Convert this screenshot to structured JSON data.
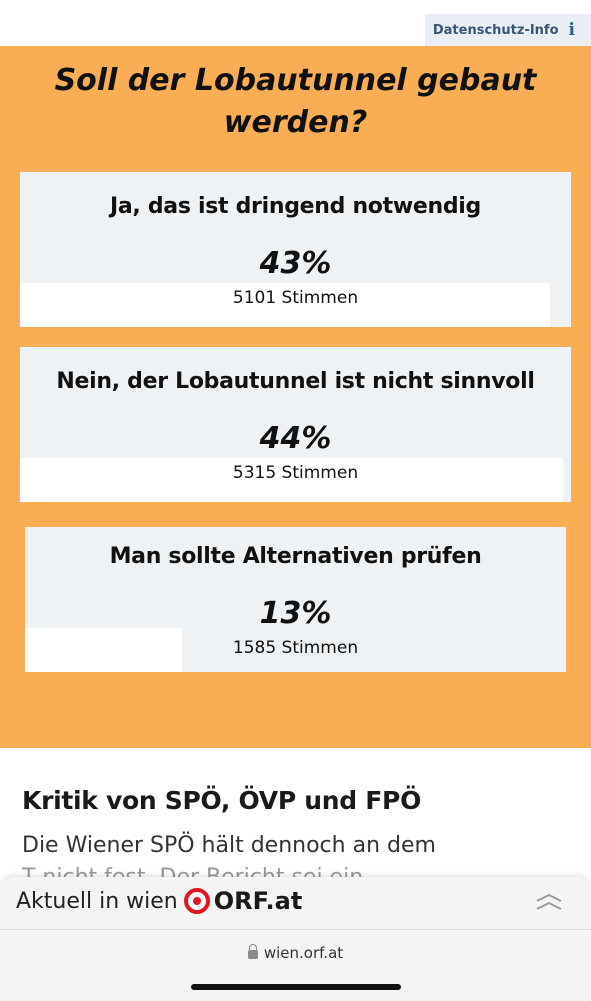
{
  "header": {
    "privacy_label": "Datenschutz-Info",
    "privacy_icon": "info-icon"
  },
  "poll": {
    "question": "Soll der Lobautunnel gebaut werden?",
    "accent_color": "#f9ae55",
    "options": [
      {
        "label": "Ja, das ist dringend notwendig",
        "percent": "43%",
        "votes": "5101 Stimmen",
        "fraction": 0.43,
        "selected": false
      },
      {
        "label": "Nein, der Lobautunnel ist nicht sinnvoll",
        "percent": "44%",
        "votes": "5315 Stimmen",
        "fraction": 0.44,
        "selected": false
      },
      {
        "label": "Man sollte Alternativen prüfen",
        "percent": "13%",
        "votes": "1585 Stimmen",
        "fraction": 0.13,
        "selected": true
      }
    ]
  },
  "article": {
    "heading": "Kritik von SPÖ, ÖVP und FPÖ",
    "paragraph_line1": "Die Wiener SPÖ hält dennoch an dem",
    "paragraph_line2": "T         nicht fest. Der Bericht sei ein"
  },
  "bottom_bar": {
    "prefix": "Aktuell in wien",
    "brand": "ORF.at",
    "logo_icon": "orf-logo-icon",
    "collapse_icon": "chevron-up-double-icon",
    "brand_color": "#e0161e"
  },
  "browser": {
    "url": "wien.orf.at",
    "lock_icon": "lock-icon"
  }
}
